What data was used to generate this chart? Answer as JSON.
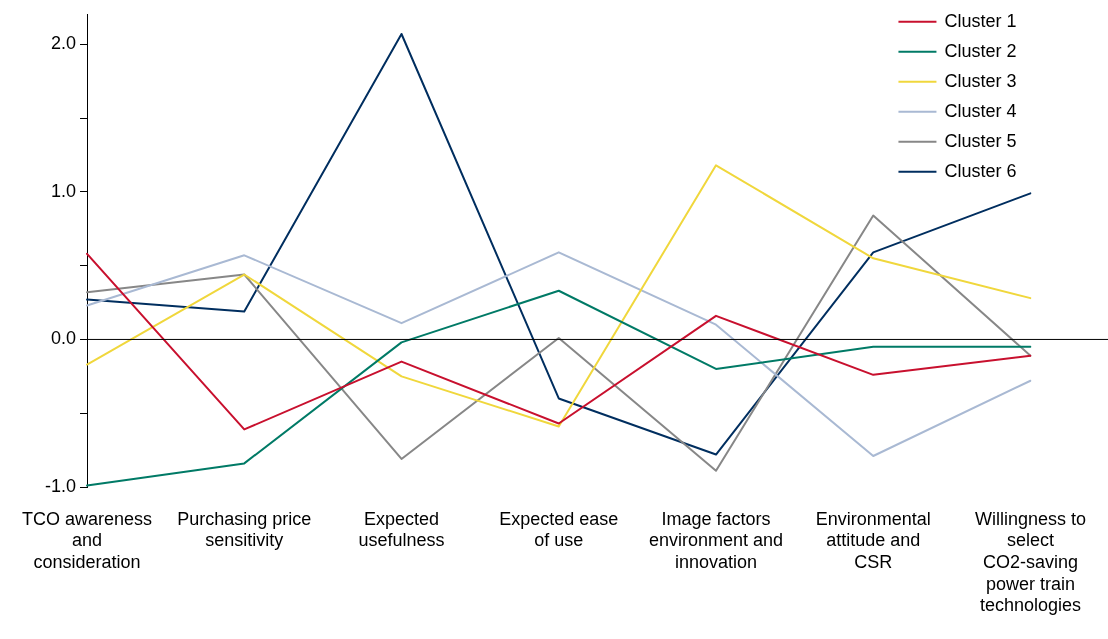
{
  "chart_data": {
    "type": "line",
    "categories": [
      "TCO awareness and consideration",
      "Purchasing price sensitivity",
      "Expected usefulness",
      "Expected ease of use",
      "Image factors environment and innovation",
      "Environmental attitude and CSR",
      "Willingness to select CO2-saving power train technologies"
    ],
    "series": [
      {
        "name": "Cluster 1",
        "color": "#c8102e",
        "values": [
          0.58,
          -0.61,
          -0.15,
          -0.57,
          0.16,
          -0.24,
          -0.11
        ]
      },
      {
        "name": "Cluster 2",
        "color": "#007a66",
        "values": [
          -0.99,
          -0.84,
          -0.02,
          0.33,
          -0.2,
          -0.05,
          -0.05
        ]
      },
      {
        "name": "Cluster 3",
        "color": "#f0d73c",
        "values": [
          -0.17,
          0.44,
          -0.25,
          -0.59,
          1.18,
          0.55,
          0.28
        ]
      },
      {
        "name": "Cluster 4",
        "color": "#a9b9d3",
        "values": [
          0.23,
          0.57,
          0.11,
          0.59,
          0.1,
          -0.79,
          -0.28
        ]
      },
      {
        "name": "Cluster 5",
        "color": "#878787",
        "values": [
          0.32,
          0.44,
          -0.81,
          0.01,
          -0.89,
          0.84,
          -0.11
        ]
      },
      {
        "name": "Cluster 6",
        "color": "#002e5f",
        "values": [
          0.27,
          0.19,
          2.07,
          -0.4,
          -0.78,
          0.59,
          0.99
        ]
      }
    ],
    "ylim": [
      -1,
      2.2
    ],
    "yticks": [
      {
        "value": -1,
        "label": "-1.0"
      },
      {
        "value": -0.5,
        "label": null
      },
      {
        "value": 0,
        "label": "0.0"
      },
      {
        "value": 0.5,
        "label": null
      },
      {
        "value": 1,
        "label": "1.0"
      },
      {
        "value": 1.5,
        "label": null
      },
      {
        "value": 2,
        "label": "2.0"
      }
    ],
    "ref_lines": [
      {
        "axis": "y",
        "value": 0,
        "color": "#000000"
      }
    ],
    "grid": false,
    "legend": "top right",
    "marker": "none",
    "line_style": "solid"
  }
}
